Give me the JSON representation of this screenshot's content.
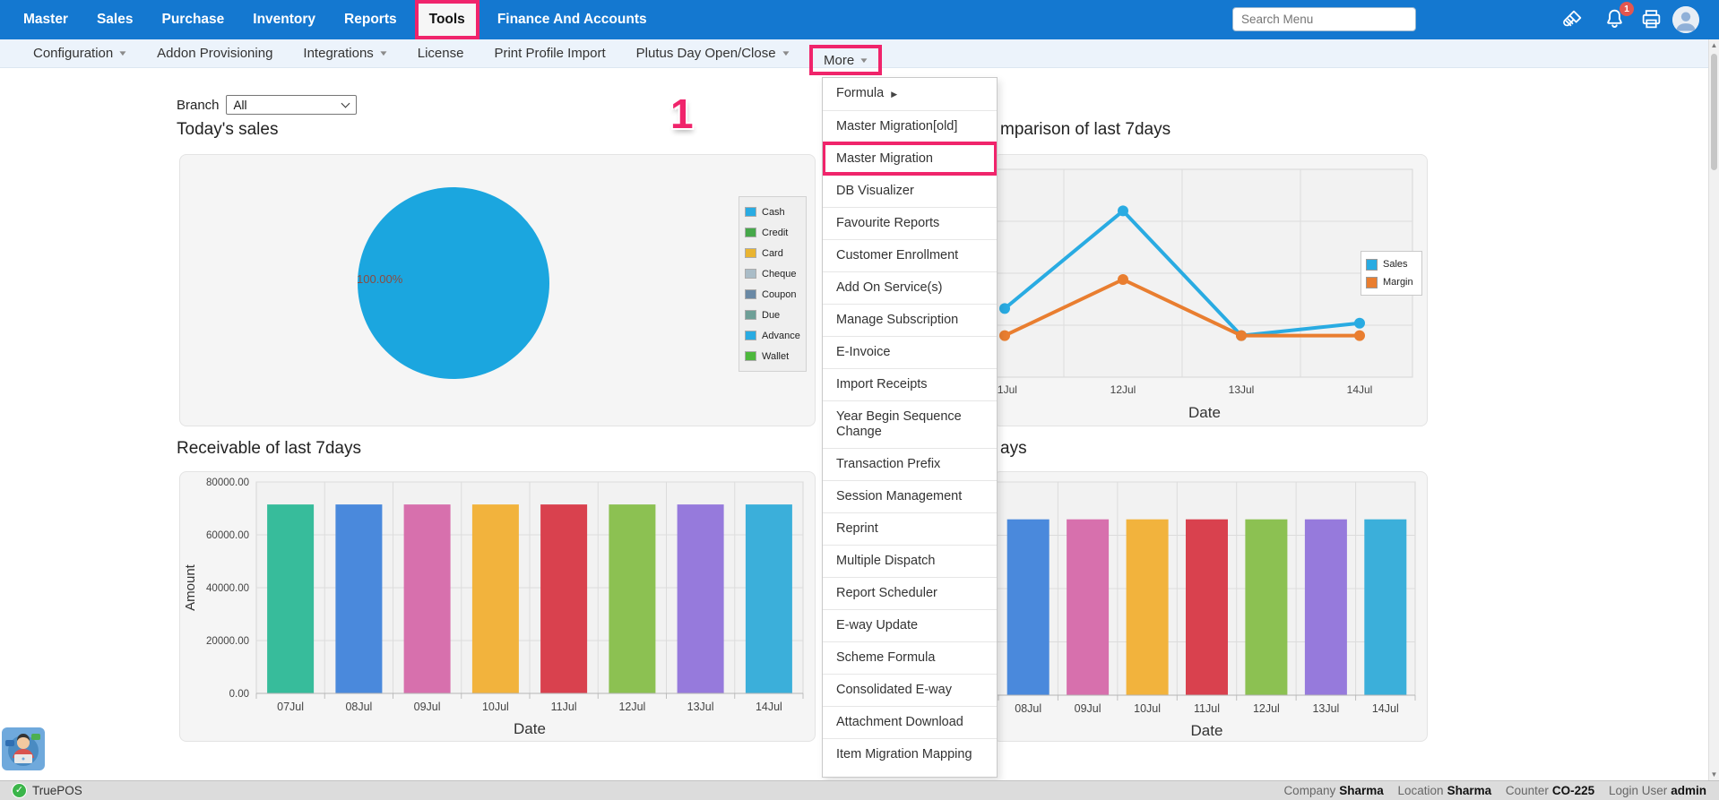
{
  "topbar": {
    "items": [
      {
        "label": "Master"
      },
      {
        "label": "Sales"
      },
      {
        "label": "Purchase"
      },
      {
        "label": "Inventory"
      },
      {
        "label": "Reports"
      },
      {
        "label": "Tools",
        "active": true,
        "highlighted": true
      },
      {
        "label": "Finance And Accounts"
      }
    ],
    "search_placeholder": "Search Menu",
    "notification_count": "1",
    "colors": {
      "bar": "#1478D0",
      "highlight": "#F0246B",
      "active_bg": "#F6F6F6"
    }
  },
  "menubar": {
    "items": [
      {
        "label": "Configuration",
        "dropdown": true
      },
      {
        "label": "Addon Provisioning"
      },
      {
        "label": "Integrations",
        "dropdown": true
      },
      {
        "label": "License"
      },
      {
        "label": "Print Profile Import"
      },
      {
        "label": "Plutus Day Open/Close",
        "dropdown": true
      },
      {
        "label": "More",
        "dropdown": true,
        "highlighted": true
      }
    ]
  },
  "dropdown_menu": {
    "items": [
      "Formula",
      "Master Migration[old]",
      "Master Migration",
      "DB Visualizer",
      "Favourite Reports",
      "Customer Enrollment",
      "Add On Service(s)",
      "Manage Subscription",
      "E-Invoice",
      "Import Receipts",
      "Year Begin Sequence Change",
      "Transaction Prefix",
      "Session Management",
      "Reprint",
      "Multiple Dispatch",
      "Report Scheduler",
      "E-way Update",
      "Scheme Formula",
      "Consolidated E-way",
      "Attachment Download",
      "Item Migration Mapping"
    ],
    "submenu_item": "Formula",
    "highlighted_item": "Master Migration"
  },
  "filters": {
    "branch_label": "Branch",
    "branch_value": "All"
  },
  "annotation": {
    "step": "1",
    "color": "#F0246B"
  },
  "statusbar": {
    "app": "TruePOS",
    "company_label": "Company",
    "company": "Sharma",
    "location_label": "Location",
    "location": "Sharma",
    "counter_label": "Counter",
    "counter": "CO-225",
    "login_label": "Login User",
    "login": "admin"
  },
  "chart_data": [
    {
      "type": "pie",
      "title": "Today's sales",
      "label_shown": "100.00%",
      "slice_color": "#1BA6DF",
      "values": [
        {
          "label": "Cash",
          "pct": 100
        }
      ],
      "legend": [
        {
          "label": "Cash",
          "color": "#29ABE2"
        },
        {
          "label": "Credit",
          "color": "#46A84A"
        },
        {
          "label": "Card",
          "color": "#E9B431"
        },
        {
          "label": "Cheque",
          "color": "#A9BCC7"
        },
        {
          "label": "Coupon",
          "color": "#6A89A5"
        },
        {
          "label": "Due",
          "color": "#6E9F97"
        },
        {
          "label": "Advance",
          "color": "#29ABE2"
        },
        {
          "label": "Wallet",
          "color": "#4DB83C"
        }
      ]
    },
    {
      "type": "line",
      "title_visible": "mparison of last 7days",
      "xlabel": "Date",
      "x": [
        "11Jul",
        "12Jul",
        "13Jul",
        "14Jul"
      ],
      "series": [
        {
          "name": "Sales",
          "color": "#29ABE2",
          "values": [
            33,
            80,
            20,
            26
          ]
        },
        {
          "name": "Margin",
          "color": "#E97E30",
          "values": [
            20,
            47,
            20,
            20
          ]
        }
      ],
      "legend_position": "right",
      "note": "y-axis and left part of chart hidden behind open More menu; values are relative 0-100 of plot height"
    },
    {
      "type": "bar",
      "title": "Receivable of last 7days",
      "xlabel": "Date",
      "ylabel": "Amount",
      "categories": [
        "07Jul",
        "08Jul",
        "09Jul",
        "10Jul",
        "11Jul",
        "12Jul",
        "13Jul",
        "14Jul"
      ],
      "values": [
        71500,
        71500,
        71500,
        71500,
        71500,
        71500,
        71500,
        71500
      ],
      "ylim": [
        0,
        80000
      ],
      "yticks": [
        "80000.00",
        "60000.00",
        "40000.00",
        "20000.00",
        "0.00"
      ],
      "bar_colors": [
        "#37BC9B",
        "#4A89DC",
        "#D770AD",
        "#F2B33D",
        "#D9414E",
        "#8CC152",
        "#967ADC",
        "#3BAFDA"
      ]
    },
    {
      "type": "bar",
      "title_visible": "ays",
      "xlabel": "Date",
      "categories": [
        "08Jul",
        "09Jul",
        "10Jul",
        "11Jul",
        "12Jul",
        "13Jul",
        "14Jul"
      ],
      "values": [
        66000,
        66000,
        66000,
        66000,
        66000,
        66000,
        66000
      ],
      "ylim": [
        0,
        80000
      ],
      "bar_colors": [
        "#4A89DC",
        "#D770AD",
        "#F2B33D",
        "#D9414E",
        "#8CC152",
        "#967ADC",
        "#3BAFDA"
      ],
      "note": "title, y-axis and first bar hidden behind open More menu"
    }
  ]
}
